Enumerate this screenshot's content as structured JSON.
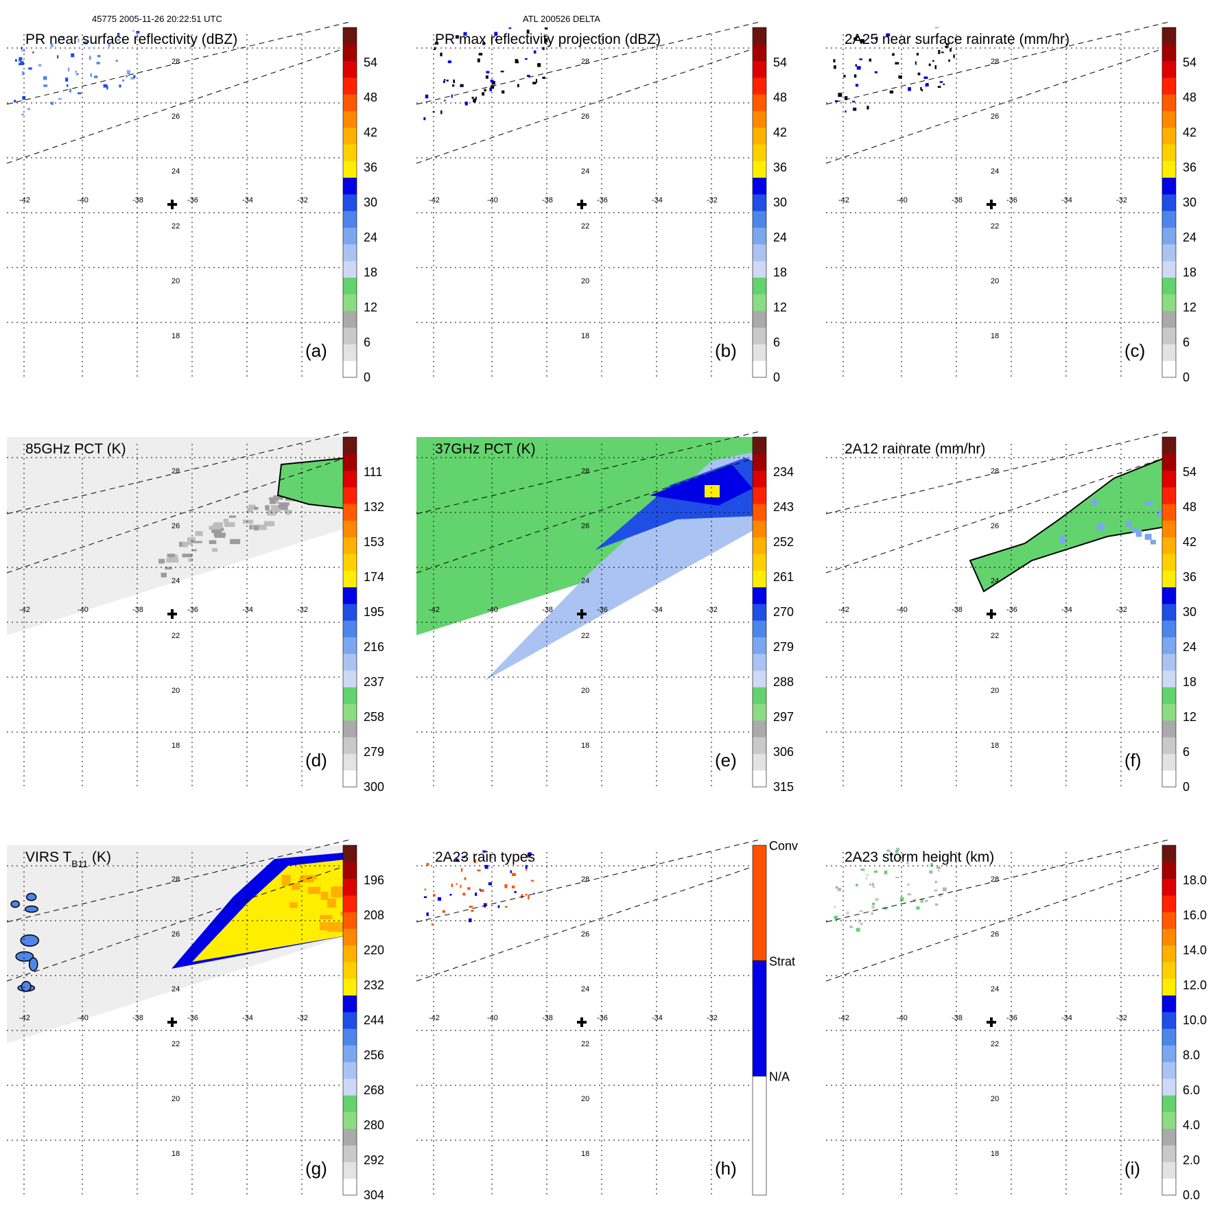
{
  "header": {
    "left": "45775 2005-11-26 20:22:51 UTC",
    "center": "ATL 200526 DELTA"
  },
  "chart_data": [
    {
      "id": "a",
      "type": "heatmap",
      "title": "PR near surface reflectivity (dBZ)",
      "panel_label": "(a)",
      "colorbar_ticks": [
        "0",
        "6",
        "12",
        "18",
        "24",
        "30",
        "36",
        "42",
        "48",
        "54"
      ],
      "lon_ticks": [
        "-42",
        "-40",
        "-38",
        "-36",
        "-34",
        "-32"
      ],
      "lat_ticks": [
        "28",
        "26",
        "24",
        "22",
        "20",
        "18"
      ],
      "swath": "narrow",
      "field": "sparse_blue"
    },
    {
      "id": "b",
      "type": "heatmap",
      "title": "PR max reflectivity projection (dBZ)",
      "panel_label": "(b)",
      "colorbar_ticks": [
        "0",
        "6",
        "12",
        "18",
        "24",
        "30",
        "36",
        "42",
        "48",
        "54"
      ],
      "lon_ticks": [
        "-42",
        "-40",
        "-38",
        "-36",
        "-34",
        "-32"
      ],
      "lat_ticks": [
        "28",
        "26",
        "24",
        "22",
        "20",
        "18"
      ],
      "swath": "narrow",
      "field": "sparse_dark"
    },
    {
      "id": "c",
      "type": "heatmap",
      "title": "2A25 near surface rainrate (mm/hr)",
      "panel_label": "(c)",
      "colorbar_ticks": [
        "0",
        "6",
        "12",
        "18",
        "24",
        "30",
        "36",
        "42",
        "48",
        "54"
      ],
      "lon_ticks": [
        "-42",
        "-40",
        "-38",
        "-36",
        "-34",
        "-32"
      ],
      "lat_ticks": [
        "28",
        "26",
        "24",
        "22",
        "20",
        "18"
      ],
      "swath": "narrow",
      "field": "sparse_dark"
    },
    {
      "id": "d",
      "type": "heatmap",
      "title": "85GHz PCT (K)",
      "panel_label": "(d)",
      "colorbar_ticks": [
        "300",
        "279",
        "258",
        "237",
        "216",
        "195",
        "174",
        "153",
        "132",
        "111"
      ],
      "lon_ticks": [
        "-42",
        "-40",
        "-38",
        "-36",
        "-34",
        "-32"
      ],
      "lat_ticks": [
        "28",
        "26",
        "24",
        "22",
        "20",
        "18"
      ],
      "swath": "wide",
      "field": "gray_edge"
    },
    {
      "id": "e",
      "type": "heatmap",
      "title": "37GHz PCT (K)",
      "panel_label": "(e)",
      "colorbar_ticks": [
        "315",
        "306",
        "297",
        "288",
        "279",
        "270",
        "261",
        "252",
        "243",
        "234"
      ],
      "lon_ticks": [
        "-42",
        "-40",
        "-38",
        "-36",
        "-34",
        "-32"
      ],
      "lat_ticks": [
        "28",
        "26",
        "24",
        "22",
        "20",
        "18"
      ],
      "swath": "wide",
      "field": "green_blue"
    },
    {
      "id": "f",
      "type": "heatmap",
      "title": "2A12 rainrate (mm/hr)",
      "panel_label": "(f)",
      "colorbar_ticks": [
        "0",
        "6",
        "12",
        "18",
        "24",
        "30",
        "36",
        "42",
        "48",
        "54"
      ],
      "lon_ticks": [
        "-42",
        "-40",
        "-38",
        "-36",
        "-34",
        "-32"
      ],
      "lat_ticks": [
        "28",
        "26",
        "24",
        "22",
        "20",
        "18"
      ],
      "swath": "narrow",
      "field": "green_band"
    },
    {
      "id": "g",
      "type": "heatmap",
      "title": "VIRS T",
      "title_sub": "B11",
      "title_suffix": " (K)",
      "panel_label": "(g)",
      "colorbar_ticks": [
        "304",
        "292",
        "280",
        "268",
        "256",
        "244",
        "232",
        "220",
        "208",
        "196"
      ],
      "lon_ticks": [
        "-42",
        "-40",
        "-38",
        "-36",
        "-34",
        "-32"
      ],
      "lat_ticks": [
        "28",
        "26",
        "24",
        "22",
        "20",
        "18"
      ],
      "swath": "wide",
      "field": "virs"
    },
    {
      "id": "h",
      "type": "heatmap",
      "title": "2A23 rain types",
      "panel_label": "(h)",
      "colorbar_ticks": [
        "N/A",
        "Strat",
        "Conv"
      ],
      "lon_ticks": [
        "-42",
        "-40",
        "-38",
        "-36",
        "-34",
        "-32"
      ],
      "lat_ticks": [
        "28",
        "26",
        "24",
        "22",
        "20",
        "18"
      ],
      "swath": "narrow",
      "field": "types"
    },
    {
      "id": "i",
      "type": "heatmap",
      "title": "2A23 storm height (km)",
      "panel_label": "(i)",
      "colorbar_ticks": [
        "0.0",
        "2.0",
        "4.0",
        "6.0",
        "8.0",
        "10.0",
        "12.0",
        "14.0",
        "16.0",
        "18.0"
      ],
      "lon_ticks": [
        "-42",
        "-40",
        "-38",
        "-36",
        "-34",
        "-32"
      ],
      "lat_ticks": [
        "28",
        "26",
        "24",
        "22",
        "20",
        "18"
      ],
      "swath": "narrow",
      "field": "sparse_gray"
    }
  ],
  "colors": {
    "scale": [
      "#ffffff",
      "#e3e3e3",
      "#c9c9c9",
      "#aaaaaa",
      "#8bdc82",
      "#63d36e",
      "#cdd9f5",
      "#aac3f2",
      "#7ba7ee",
      "#4d86ea",
      "#1f4ee4",
      "#0000e6",
      "#ffee00",
      "#ffd000",
      "#ffb000",
      "#ff8800",
      "#ff5a00",
      "#ff2200",
      "#dd0000",
      "#a20000",
      "#6a1410"
    ],
    "types": {
      "na": "#ffffff",
      "strat": "#0000e6",
      "conv": "#ff5000"
    }
  }
}
